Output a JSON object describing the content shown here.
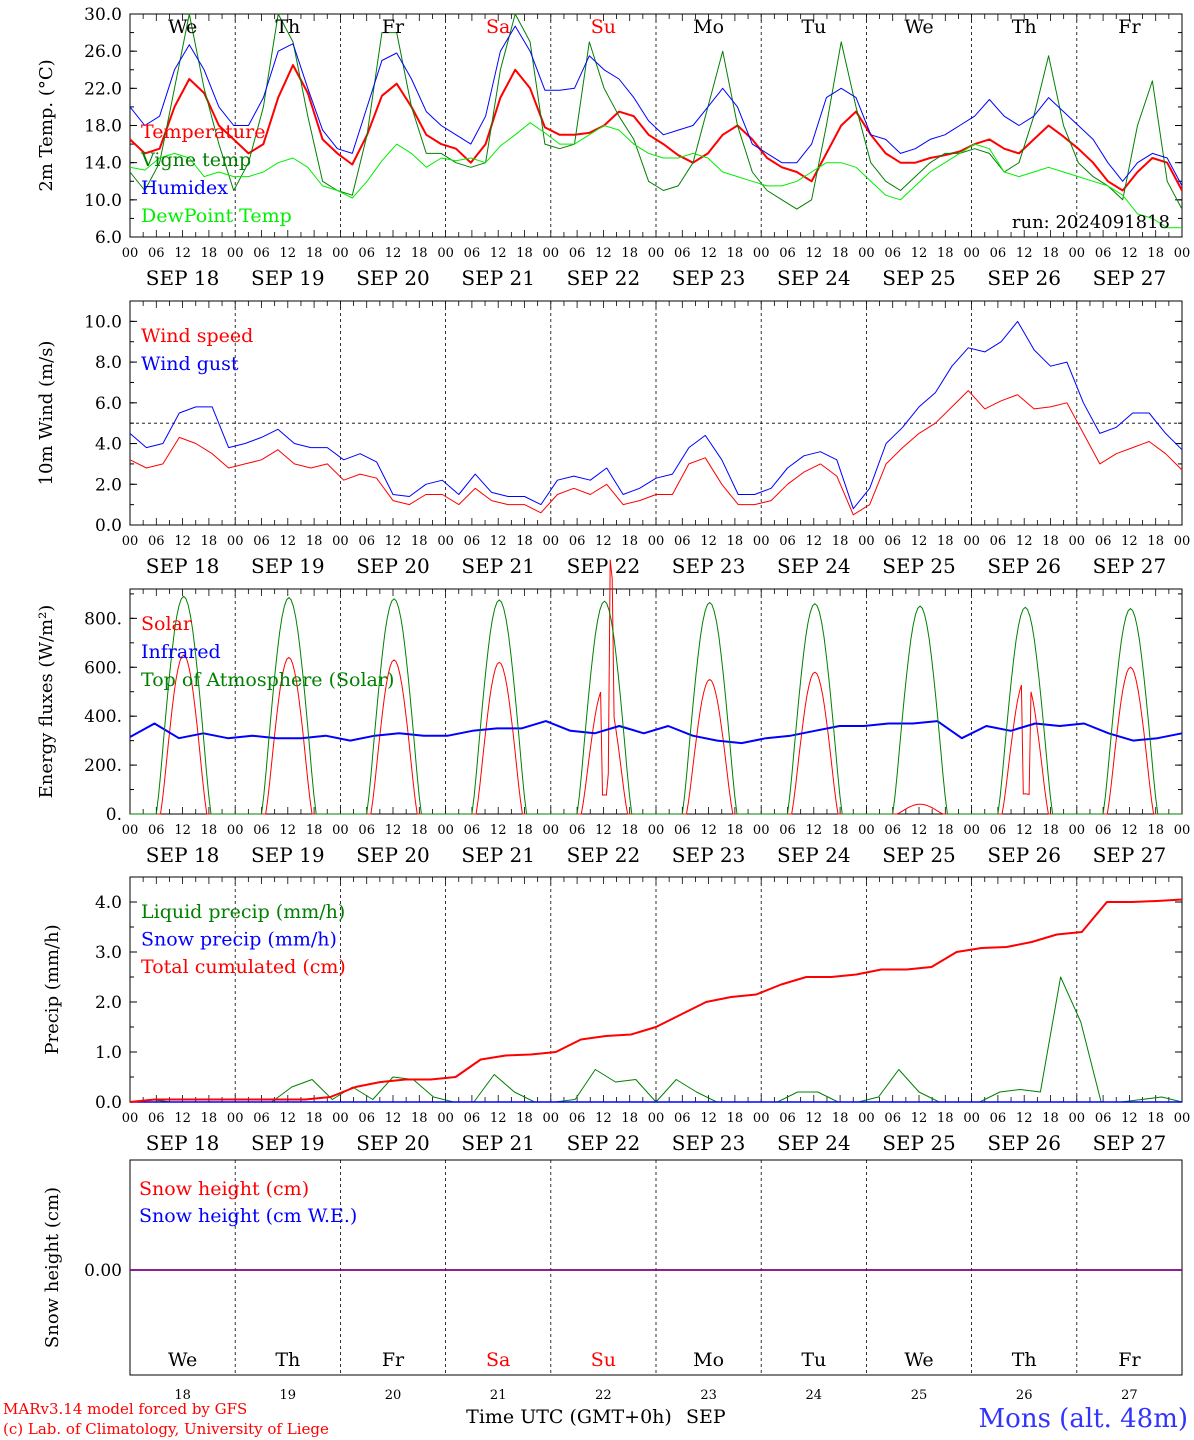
{
  "days": {
    "dates": [
      "18",
      "19",
      "20",
      "21",
      "22",
      "23",
      "24",
      "25",
      "26",
      "27"
    ],
    "date_labels": [
      "SEP 18",
      "SEP 19",
      "SEP 20",
      "SEP 21",
      "SEP 22",
      "SEP 23",
      "SEP 24",
      "SEP 25",
      "SEP 26",
      "SEP 27"
    ],
    "weekdays": [
      "We",
      "Th",
      "Fr",
      "Sa",
      "Su",
      "Mo",
      "Tu",
      "We",
      "Th",
      "Fr"
    ],
    "weekend_index": [
      3,
      4
    ],
    "hour_ticks": [
      "00",
      "06",
      "12",
      "18"
    ],
    "final_tick": "00"
  },
  "colors": {
    "red": "#ff0000",
    "green": "#008000",
    "blue": "#0000ff",
    "light_green": "#00ee00",
    "purple": "#800080",
    "weekend": "#ff0000",
    "station": "#3333ff"
  },
  "footer": {
    "model_line": "MARv3.14 model forced by GFS",
    "credit_line": "(c) Lab. of Climatology, University of Liege",
    "axis_title": "Time UTC (GMT+0h)",
    "month": "SEP",
    "station": "Mons (alt. 48m)"
  },
  "chart_data": [
    {
      "id": "temp",
      "type": "line",
      "ylabel": "2m Temp. (°C)",
      "ylim": [
        6,
        30
      ],
      "yticks": [
        "6.0",
        "10.0",
        "14.0",
        "18.0",
        "22.0",
        "26.0",
        "30.0"
      ],
      "annotation": "run: 2024091818",
      "series": [
        {
          "name": "Temperature",
          "color": "red",
          "width": 2,
          "values": [
            16.5,
            15,
            15.5,
            20,
            23,
            21.5,
            18,
            16.5,
            15,
            16,
            21,
            24.5,
            21.5,
            16.5,
            15,
            13.8,
            17,
            21.2,
            22.5,
            20,
            17,
            16,
            15.5,
            14,
            16,
            21,
            24,
            22,
            17.8,
            17,
            17,
            17.2,
            18,
            19.5,
            19,
            17,
            16,
            14.8,
            14,
            15,
            17,
            18,
            16.5,
            14.5,
            13.5,
            13,
            12,
            15,
            18,
            19.5,
            17,
            15,
            14,
            14,
            14.5,
            14.8,
            15.2,
            16,
            16.5,
            15.5,
            15,
            16.5,
            18,
            16.8,
            15.5,
            14,
            12,
            11,
            13,
            14.5,
            14,
            11
          ]
        },
        {
          "name": "Vigne temp",
          "color": "green",
          "width": 1,
          "values": [
            13,
            11,
            14,
            22,
            30,
            22,
            16,
            11,
            14,
            20,
            30,
            27,
            19,
            12,
            11,
            10.5,
            17,
            28,
            28,
            20,
            15,
            15,
            14,
            13.5,
            14,
            24,
            30,
            27,
            16,
            15.5,
            16,
            27,
            22,
            19,
            16.5,
            12,
            11,
            11.5,
            14,
            20,
            26,
            18,
            13,
            11,
            10,
            9,
            10,
            18,
            27,
            20,
            14,
            12,
            11,
            12.5,
            14,
            15,
            15,
            15.5,
            15,
            13,
            14,
            19,
            25.5,
            18,
            14,
            12.5,
            11.5,
            10,
            18,
            22.8,
            12,
            9
          ]
        },
        {
          "name": "Humidex",
          "color": "blue",
          "width": 1,
          "values": [
            20,
            18,
            19,
            24,
            26.7,
            24,
            20,
            18,
            18,
            21,
            26,
            26.8,
            22,
            17.5,
            15.5,
            15,
            20,
            25,
            25.8,
            23,
            19.5,
            18,
            17,
            16,
            19,
            26,
            28.7,
            26,
            21.8,
            21.8,
            22,
            25.5,
            24,
            23,
            21,
            18.5,
            17,
            17.5,
            18,
            20,
            22,
            20,
            16,
            15,
            14,
            14,
            16,
            21,
            22,
            21,
            17,
            16.5,
            15,
            15.5,
            16.5,
            17,
            18,
            19,
            20.8,
            19,
            18,
            19,
            21,
            19.5,
            18,
            16.5,
            14,
            12,
            14,
            15,
            14.5,
            11.5
          ]
        },
        {
          "name": "DewPoint Temp",
          "color": "light_green",
          "width": 1,
          "values": [
            13.5,
            13.2,
            14.5,
            15,
            14.5,
            12.5,
            13,
            12.5,
            12.5,
            13,
            14,
            14.5,
            13.5,
            11.5,
            11,
            10.2,
            12,
            14.2,
            16,
            15,
            13.5,
            14.5,
            14.2,
            14.5,
            14,
            15.8,
            17,
            18.3,
            17.2,
            16,
            16,
            17,
            18,
            17.5,
            16,
            15,
            14.5,
            14.5,
            15,
            14.5,
            13,
            12.5,
            12,
            11.5,
            11.5,
            12,
            13,
            14,
            14,
            13.5,
            12,
            10.5,
            10,
            11.5,
            13,
            14,
            15,
            16,
            15.5,
            13,
            12.5,
            13,
            13.5,
            13,
            12.5,
            12,
            11.5,
            10.5,
            8.5,
            8,
            7,
            7
          ]
        }
      ]
    },
    {
      "id": "wind",
      "type": "line",
      "ylabel": "10m Wind (m/s)",
      "ylim": [
        0,
        11
      ],
      "yticks": [
        "0.0",
        "2.0",
        "4.0",
        "6.0",
        "8.0",
        "10.0"
      ],
      "reference_line": 5,
      "series": [
        {
          "name": "Wind speed",
          "color": "red",
          "width": 1,
          "values": [
            3.2,
            2.8,
            3,
            4.3,
            4,
            3.5,
            2.8,
            3,
            3.2,
            3.7,
            3,
            2.8,
            3,
            2.2,
            2.5,
            2.3,
            1.2,
            1,
            1.5,
            1.5,
            1,
            1.8,
            1.2,
            1,
            1,
            0.6,
            1.5,
            1.8,
            1.5,
            2,
            1,
            1.2,
            1.5,
            1.5,
            3,
            3.3,
            2,
            1,
            1,
            1.2,
            2,
            2.6,
            3,
            2.4,
            0.5,
            1,
            3,
            3.8,
            4.5,
            5,
            5.8,
            6.6,
            5.7,
            6.1,
            6.4,
            5.7,
            5.8,
            6,
            4.5,
            3,
            3.5,
            3.8,
            4.1,
            3.5,
            2.7
          ]
        },
        {
          "name": "Wind gust",
          "color": "blue",
          "width": 1,
          "values": [
            4.5,
            3.8,
            4,
            5.5,
            5.8,
            5.8,
            3.8,
            4,
            4.3,
            4.7,
            4,
            3.8,
            3.8,
            3.2,
            3.5,
            3.1,
            1.5,
            1.4,
            2,
            2.2,
            1.5,
            2.5,
            1.6,
            1.4,
            1.4,
            1,
            2.2,
            2.4,
            2.2,
            2.8,
            1.5,
            1.8,
            2.3,
            2.5,
            3.8,
            4.4,
            3.2,
            1.5,
            1.5,
            1.8,
            2.8,
            3.4,
            3.6,
            3.2,
            0.8,
            1.8,
            4,
            4.8,
            5.8,
            6.5,
            7.8,
            8.7,
            8.5,
            9,
            10,
            8.6,
            7.8,
            8,
            6,
            4.5,
            4.8,
            5.5,
            5.5,
            4.5,
            3.7
          ]
        }
      ]
    },
    {
      "id": "energy",
      "type": "line",
      "ylabel": "Energy fluxes (W/m²)",
      "ylim": [
        0,
        920
      ],
      "yticks": [
        "0.",
        "200.",
        "400.",
        "600.",
        "800."
      ],
      "series": [
        {
          "name": "Solar",
          "color": "red",
          "width": 1,
          "daily_peak": [
            650,
            640,
            630,
            620,
            520,
            550,
            580,
            40,
            550,
            600
          ]
        },
        {
          "name": "Infrared",
          "color": "blue",
          "width": 2,
          "values": [
            315,
            370,
            310,
            330,
            310,
            320,
            310,
            310,
            320,
            300,
            320,
            330,
            320,
            320,
            340,
            350,
            350,
            380,
            340,
            330,
            360,
            330,
            360,
            320,
            300,
            290,
            310,
            320,
            340,
            360,
            360,
            370,
            370,
            380,
            310,
            360,
            340,
            370,
            360,
            370,
            330,
            300,
            310,
            330
          ]
        },
        {
          "name": "Top of Atmosphere (Solar)",
          "color": "green",
          "width": 1,
          "daily_peak": [
            890,
            885,
            880,
            875,
            870,
            865,
            860,
            850,
            845,
            840
          ]
        }
      ]
    },
    {
      "id": "precip",
      "type": "line",
      "ylabel": "Precip (mm/h)",
      "ylim": [
        0,
        4.5
      ],
      "yticks": [
        "0.0",
        "1.0",
        "2.0",
        "3.0",
        "4.0"
      ],
      "series": [
        {
          "name": "Liquid precip (mm/h)",
          "color": "green",
          "width": 1,
          "values": [
            0,
            0.05,
            0,
            0,
            0,
            0,
            0,
            0,
            0.3,
            0.45,
            0.05,
            0.3,
            0.05,
            0.5,
            0.45,
            0.1,
            0,
            0,
            0.55,
            0.2,
            0,
            0,
            0.05,
            0.65,
            0.4,
            0.45,
            0,
            0.45,
            0.2,
            0,
            0,
            0,
            0,
            0.2,
            0.2,
            0,
            0,
            0.1,
            0.65,
            0.2,
            0,
            0,
            0,
            0.2,
            0.25,
            0.2,
            2.5,
            1.6,
            0,
            0,
            0.05,
            0.1,
            0
          ]
        },
        {
          "name": "Snow precip (mm/h)",
          "color": "blue",
          "width": 1,
          "values": [
            0
          ]
        },
        {
          "name": "Total cumulated (cm)",
          "color": "red",
          "width": 2,
          "values": [
            0,
            0.05,
            0.05,
            0.05,
            0.05,
            0.05,
            0.05,
            0.05,
            0.1,
            0.3,
            0.4,
            0.45,
            0.45,
            0.5,
            0.85,
            0.93,
            0.95,
            1.0,
            1.25,
            1.32,
            1.35,
            1.5,
            1.75,
            2.0,
            2.1,
            2.15,
            2.35,
            2.5,
            2.5,
            2.55,
            2.65,
            2.65,
            2.7,
            3.0,
            3.08,
            3.1,
            3.2,
            3.35,
            3.4,
            4.0,
            4.0,
            4.02,
            4.05
          ]
        }
      ]
    },
    {
      "id": "snow",
      "type": "line",
      "ylabel": "Snow height (cm)",
      "yticks": [
        "0.00"
      ],
      "series": [
        {
          "name": "Snow height (cm)",
          "color": "red",
          "values": [
            0
          ]
        },
        {
          "name": "Snow height (cm W.E.)",
          "color": "blue",
          "values": [
            0
          ]
        }
      ]
    }
  ]
}
